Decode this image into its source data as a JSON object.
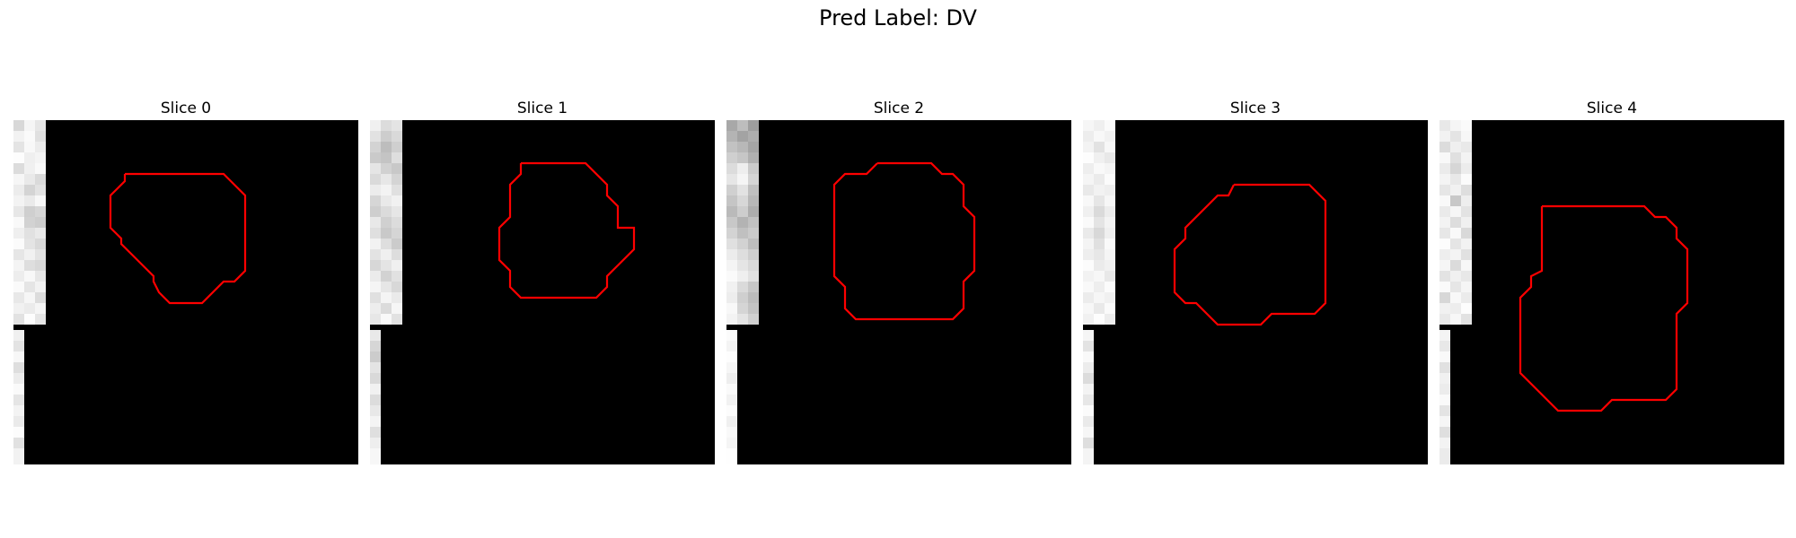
{
  "figure": {
    "title": "Pred Label: DV",
    "contour_color": "#ff0000"
  },
  "panels": [
    {
      "label": "Slice 0"
    },
    {
      "label": "Slice 1"
    },
    {
      "label": "Slice 2"
    },
    {
      "label": "Slice 3"
    },
    {
      "label": "Slice 4"
    }
  ]
}
